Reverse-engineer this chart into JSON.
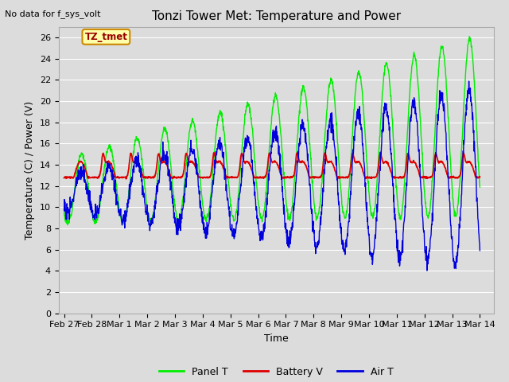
{
  "title": "Tonzi Tower Met: Temperature and Power",
  "top_left_text": "No data for f_sys_volt",
  "xlabel": "Time",
  "ylabel": "Temperature (C) / Power (V)",
  "ylim": [
    0,
    27
  ],
  "yticks": [
    0,
    2,
    4,
    6,
    8,
    10,
    12,
    14,
    16,
    18,
    20,
    22,
    24,
    26
  ],
  "xtick_labels": [
    "Feb 27",
    "Feb 28",
    "Mar 1",
    "Mar 2",
    "Mar 3",
    "Mar 4",
    "Mar 5",
    "Mar 6",
    "Mar 7",
    "Mar 8",
    "Mar 9",
    "Mar 10",
    "Mar 11",
    "Mar 12",
    "Mar 13",
    "Mar 14"
  ],
  "bg_color": "#dcdcdc",
  "plot_bg_color": "#dcdcdc",
  "grid_color": "#ffffff",
  "panel_t_color": "#00ee00",
  "battery_v_color": "#dd0000",
  "air_t_color": "#0000dd",
  "legend_labels": [
    "Panel T",
    "Battery V",
    "Air T"
  ],
  "legend_colors": [
    "#00ee00",
    "#dd0000",
    "#0000dd"
  ],
  "annotation_text": "TZ_tmet",
  "annotation_bg": "#ffffaa",
  "annotation_border": "#cc8800",
  "title_fontsize": 11,
  "axis_label_fontsize": 9,
  "tick_fontsize": 8
}
